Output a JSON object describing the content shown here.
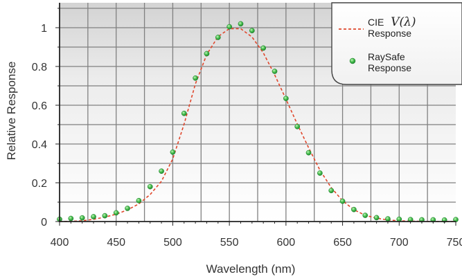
{
  "chart_data": {
    "type": "line",
    "xlabel": "Wavelength (nm)",
    "ylabel": "Relative Response",
    "xlim": [
      400,
      750
    ],
    "ylim": [
      0,
      1.1
    ],
    "x_ticks": [
      "400",
      "450",
      "500",
      "550",
      "600",
      "650",
      "700",
      "750"
    ],
    "y_ticks": [
      "0",
      "0.2",
      "0.4",
      "0.6",
      "0.8",
      "1"
    ],
    "grid": true,
    "legend_position": "top-right",
    "series": [
      {
        "name": "CIE V(λ) Response",
        "legend_prefix": "CIE",
        "legend_symbol": "V(λ)",
        "legend_suffix": "Response",
        "style": "dashed-line",
        "color": "#e0452a",
        "x": [
          400,
          410,
          420,
          430,
          440,
          450,
          460,
          470,
          480,
          490,
          500,
          510,
          520,
          530,
          540,
          550,
          560,
          570,
          580,
          590,
          600,
          610,
          620,
          630,
          640,
          650,
          660,
          670,
          680,
          690,
          700,
          710,
          720,
          730,
          740,
          750
        ],
        "y": [
          0.0004,
          0.0012,
          0.004,
          0.0116,
          0.023,
          0.038,
          0.06,
          0.091,
          0.139,
          0.208,
          0.323,
          0.503,
          0.71,
          0.862,
          0.954,
          0.995,
          0.995,
          0.952,
          0.87,
          0.757,
          0.631,
          0.503,
          0.381,
          0.265,
          0.175,
          0.107,
          0.061,
          0.032,
          0.017,
          0.0082,
          0.0041,
          0.0021,
          0.001,
          0.0005,
          0.0002,
          0.0001
        ]
      },
      {
        "name": "RaySafe Response",
        "legend_label": "RaySafe Response",
        "style": "markers",
        "color": "#3bb54a",
        "x": [
          400,
          410,
          420,
          430,
          440,
          450,
          460,
          470,
          480,
          490,
          500,
          510,
          520,
          530,
          540,
          550,
          560,
          570,
          580,
          590,
          600,
          610,
          620,
          630,
          640,
          650,
          660,
          670,
          680,
          690,
          700,
          710,
          720,
          730,
          740,
          750
        ],
        "y": [
          0.012,
          0.016,
          0.019,
          0.025,
          0.03,
          0.045,
          0.068,
          0.108,
          0.18,
          0.26,
          0.358,
          0.558,
          0.74,
          0.866,
          0.95,
          1.005,
          1.02,
          0.985,
          0.895,
          0.775,
          0.635,
          0.49,
          0.355,
          0.25,
          0.16,
          0.105,
          0.062,
          0.032,
          0.02,
          0.014,
          0.012,
          0.01,
          0.009,
          0.009,
          0.008,
          0.01
        ]
      }
    ]
  }
}
